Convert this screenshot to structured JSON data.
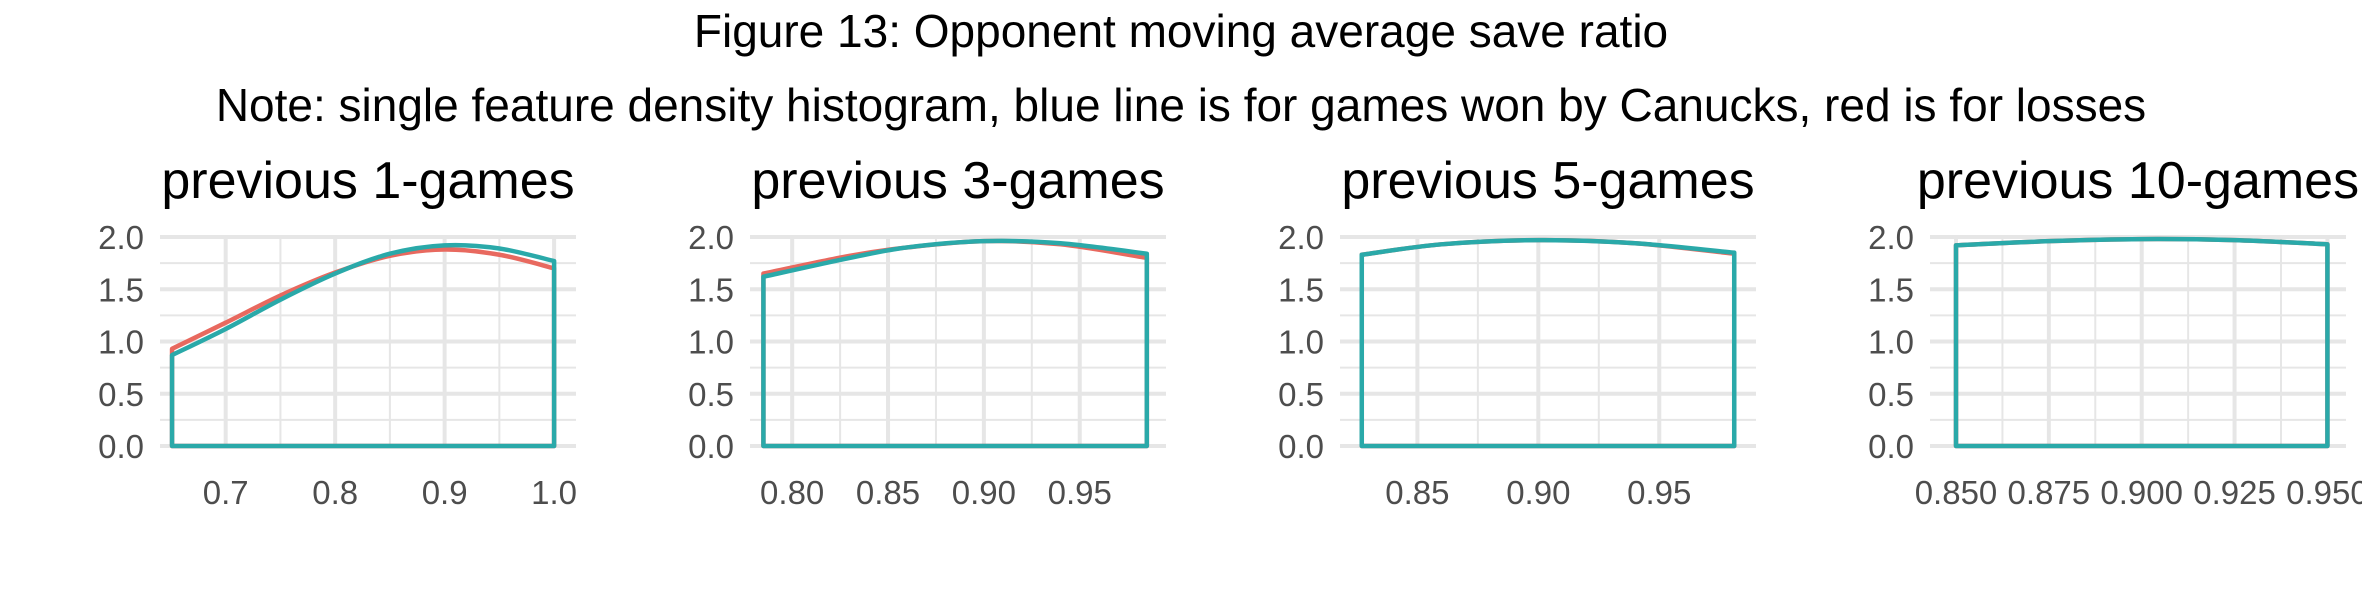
{
  "title": "Figure 13: Opponent moving average save ratio",
  "subtitle": "Note: single feature density histogram, blue line is for games won by Canucks, red is for losses",
  "colors": {
    "win": "#2aa9a9",
    "loss": "#e8695f",
    "grid": "#e6e6e6",
    "axis_text": "#4d4d4d"
  },
  "chart_data": [
    {
      "type": "area",
      "title": "previous 1-games",
      "xlim": [
        0.64,
        1.02
      ],
      "ylim": [
        0,
        2.0
      ],
      "xticks": [
        0.7,
        0.8,
        0.9,
        1.0
      ],
      "xtick_labels": [
        "0.7",
        "0.8",
        "0.9",
        "1.0"
      ],
      "yticks": [
        0,
        0.5,
        1.0,
        1.5,
        2.0
      ],
      "ytick_labels": [
        "0.0",
        "0.5",
        "1.0",
        "1.5",
        "2.0"
      ],
      "grid": true,
      "series": [
        {
          "key": "loss",
          "x": [
            0.651,
            0.7,
            0.75,
            0.8,
            0.85,
            0.9,
            0.95,
            1.0
          ],
          "values": [
            0.93,
            1.18,
            1.44,
            1.66,
            1.82,
            1.88,
            1.83,
            1.7
          ]
        },
        {
          "key": "win",
          "x": [
            0.651,
            0.7,
            0.75,
            0.8,
            0.85,
            0.9,
            0.95,
            1.0
          ],
          "values": [
            0.87,
            1.12,
            1.4,
            1.65,
            1.84,
            1.92,
            1.89,
            1.77
          ]
        }
      ]
    },
    {
      "type": "area",
      "title": "previous 3-games",
      "xlim": [
        0.778,
        0.995
      ],
      "ylim": [
        0,
        2.0
      ],
      "xticks": [
        0.8,
        0.85,
        0.9,
        0.95
      ],
      "xtick_labels": [
        "0.80",
        "0.85",
        "0.90",
        "0.95"
      ],
      "yticks": [
        0,
        0.5,
        1.0,
        1.5,
        2.0
      ],
      "ytick_labels": [
        "0.0",
        "0.5",
        "1.0",
        "1.5",
        "2.0"
      ],
      "grid": true,
      "series": [
        {
          "key": "loss",
          "x": [
            0.785,
            0.83,
            0.86,
            0.9,
            0.94,
            0.985
          ],
          "values": [
            1.65,
            1.82,
            1.9,
            1.96,
            1.93,
            1.8
          ]
        },
        {
          "key": "win",
          "x": [
            0.785,
            0.83,
            0.86,
            0.9,
            0.94,
            0.985
          ],
          "values": [
            1.62,
            1.8,
            1.9,
            1.96,
            1.94,
            1.84
          ]
        }
      ]
    },
    {
      "type": "area",
      "title": "previous 5-games",
      "xlim": [
        0.818,
        0.99
      ],
      "ylim": [
        0,
        2.0
      ],
      "xticks": [
        0.85,
        0.9,
        0.95
      ],
      "xtick_labels": [
        "0.85",
        "0.90",
        "0.95"
      ],
      "yticks": [
        0,
        0.5,
        1.0,
        1.5,
        2.0
      ],
      "ytick_labels": [
        "0.0",
        "0.5",
        "1.0",
        "1.5",
        "2.0"
      ],
      "grid": true,
      "series": [
        {
          "key": "loss",
          "x": [
            0.827,
            0.86,
            0.9,
            0.94,
            0.981
          ],
          "values": [
            1.83,
            1.93,
            1.97,
            1.94,
            1.84
          ]
        },
        {
          "key": "win",
          "x": [
            0.827,
            0.86,
            0.9,
            0.94,
            0.981
          ],
          "values": [
            1.83,
            1.93,
            1.97,
            1.94,
            1.85
          ]
        }
      ]
    },
    {
      "type": "area",
      "title": "previous 10-games",
      "xlim": [
        0.843,
        0.955
      ],
      "ylim": [
        0,
        2.0
      ],
      "xticks": [
        0.85,
        0.875,
        0.9,
        0.925,
        0.95
      ],
      "xtick_labels": [
        "0.850",
        "0.875",
        "0.900",
        "0.925",
        "0.950"
      ],
      "yticks": [
        0,
        0.5,
        1.0,
        1.5,
        2.0
      ],
      "ytick_labels": [
        "0.0",
        "0.5",
        "1.0",
        "1.5",
        "2.0"
      ],
      "grid": true,
      "series": [
        {
          "key": "loss",
          "x": [
            0.85,
            0.875,
            0.9,
            0.925,
            0.95
          ],
          "values": [
            1.92,
            1.96,
            1.98,
            1.97,
            1.93
          ]
        },
        {
          "key": "win",
          "x": [
            0.85,
            0.875,
            0.9,
            0.925,
            0.95
          ],
          "values": [
            1.92,
            1.96,
            1.98,
            1.97,
            1.93
          ]
        }
      ]
    }
  ]
}
